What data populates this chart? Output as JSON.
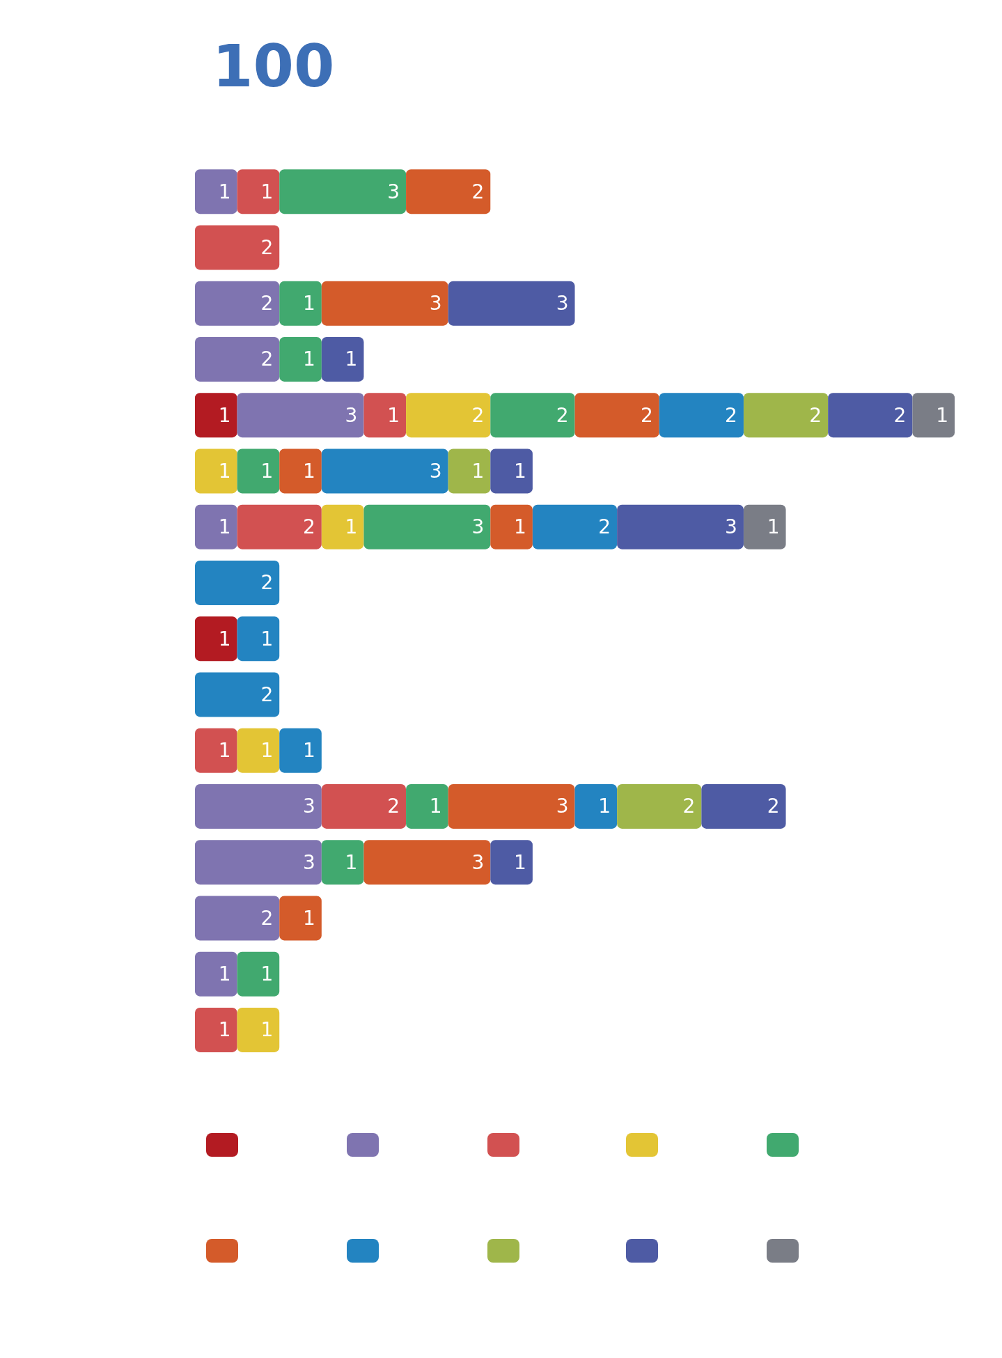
{
  "chart_data": {
    "type": "bar",
    "orientation": "horizontal",
    "stacked": true,
    "title": "100",
    "data_labels": true,
    "tick_labels": false,
    "categories": [
      null,
      null,
      null,
      null,
      null,
      null,
      null,
      null,
      null,
      null,
      null,
      null,
      null,
      null,
      null,
      null
    ],
    "series": [
      {
        "color": "#b31b22",
        "values": [
          null,
          null,
          null,
          null,
          1,
          null,
          null,
          null,
          1,
          null,
          null,
          null,
          null,
          null,
          null,
          null
        ]
      },
      {
        "color": "#7f74b0",
        "values": [
          1,
          null,
          2,
          2,
          3,
          null,
          1,
          null,
          null,
          null,
          null,
          3,
          3,
          2,
          1,
          null
        ]
      },
      {
        "color": "#d25151",
        "values": [
          1,
          2,
          null,
          null,
          1,
          null,
          2,
          null,
          null,
          null,
          1,
          2,
          null,
          null,
          null,
          1
        ]
      },
      {
        "color": "#e3c535",
        "values": [
          null,
          null,
          null,
          null,
          2,
          1,
          1,
          null,
          null,
          null,
          1,
          null,
          null,
          null,
          null,
          1
        ]
      },
      {
        "color": "#41a96f",
        "values": [
          3,
          null,
          1,
          1,
          2,
          1,
          3,
          null,
          null,
          null,
          null,
          1,
          1,
          null,
          1,
          null
        ]
      },
      {
        "color": "#d45b2a",
        "values": [
          2,
          null,
          3,
          null,
          2,
          1,
          1,
          null,
          null,
          null,
          null,
          3,
          3,
          1,
          null,
          null
        ]
      },
      {
        "color": "#2384c1",
        "values": [
          null,
          null,
          null,
          null,
          2,
          3,
          2,
          2,
          1,
          2,
          1,
          1,
          null,
          null,
          null,
          null
        ]
      },
      {
        "color": "#9fb64a",
        "values": [
          null,
          null,
          null,
          null,
          2,
          1,
          null,
          null,
          null,
          null,
          null,
          2,
          null,
          null,
          null,
          null
        ]
      },
      {
        "color": "#4e5ba4",
        "values": [
          null,
          null,
          3,
          1,
          2,
          1,
          3,
          null,
          null,
          null,
          null,
          2,
          1,
          null,
          null,
          null
        ]
      },
      {
        "color": "#7a7d86",
        "values": [
          null,
          null,
          null,
          null,
          1,
          null,
          1,
          null,
          null,
          null,
          null,
          null,
          null,
          null,
          null,
          null
        ]
      }
    ]
  }
}
